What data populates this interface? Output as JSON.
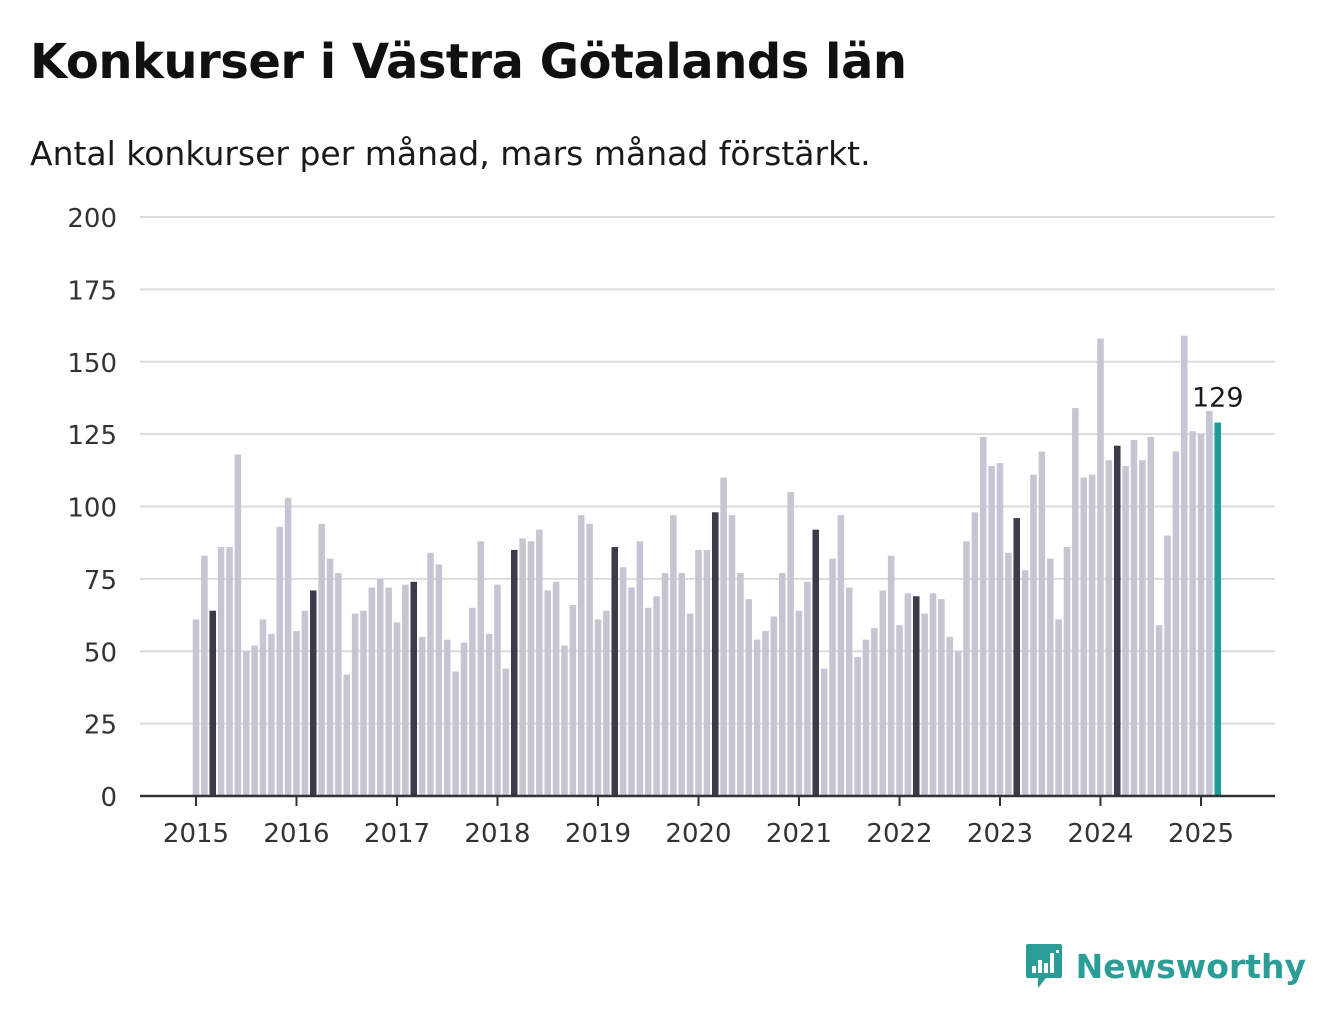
{
  "title": "Konkurser i Västra Götalands län",
  "subtitle": "Antal konkurser per månad, mars månad förstärkt.",
  "brand": {
    "name": "Newsworthy",
    "icon": "newsworthy-logo-icon"
  },
  "colors": {
    "bar": "#c6c6d3",
    "march": "#3b3b4a",
    "latest": "#1a9e96",
    "grid": "#dcdcdc",
    "axis": "#333333",
    "brand": "#2a9d96"
  },
  "chart_data": {
    "type": "bar",
    "ylim": [
      0,
      200
    ],
    "y_ticks": [
      0,
      25,
      50,
      75,
      100,
      125,
      150,
      175,
      200
    ],
    "x_ticks": [
      "2015",
      "2016",
      "2017",
      "2018",
      "2019",
      "2020",
      "2021",
      "2022",
      "2023",
      "2024",
      "2025"
    ],
    "grid": true,
    "highlight_month": "mars",
    "start": "2015-01",
    "end": "2025-03",
    "values": [
      61,
      83,
      64,
      86,
      86,
      118,
      50,
      52,
      61,
      56,
      93,
      103,
      57,
      64,
      71,
      94,
      82,
      77,
      42,
      63,
      64,
      72,
      75,
      72,
      60,
      73,
      74,
      55,
      84,
      80,
      54,
      43,
      53,
      65,
      88,
      56,
      73,
      44,
      85,
      89,
      88,
      92,
      71,
      74,
      52,
      66,
      97,
      94,
      61,
      64,
      86,
      79,
      72,
      88,
      65,
      69,
      77,
      97,
      77,
      63,
      85,
      85,
      98,
      110,
      97,
      77,
      68,
      54,
      57,
      62,
      77,
      105,
      64,
      74,
      92,
      44,
      82,
      97,
      72,
      48,
      54,
      58,
      71,
      83,
      59,
      70,
      69,
      63,
      70,
      68,
      55,
      50,
      88,
      98,
      124,
      114,
      115,
      84,
      96,
      78,
      111,
      119,
      82,
      61,
      86,
      134,
      110,
      111,
      158,
      116,
      121,
      114,
      123,
      116,
      124,
      59,
      90,
      119,
      159,
      126,
      125,
      133,
      129
    ],
    "latest_label": "129"
  }
}
